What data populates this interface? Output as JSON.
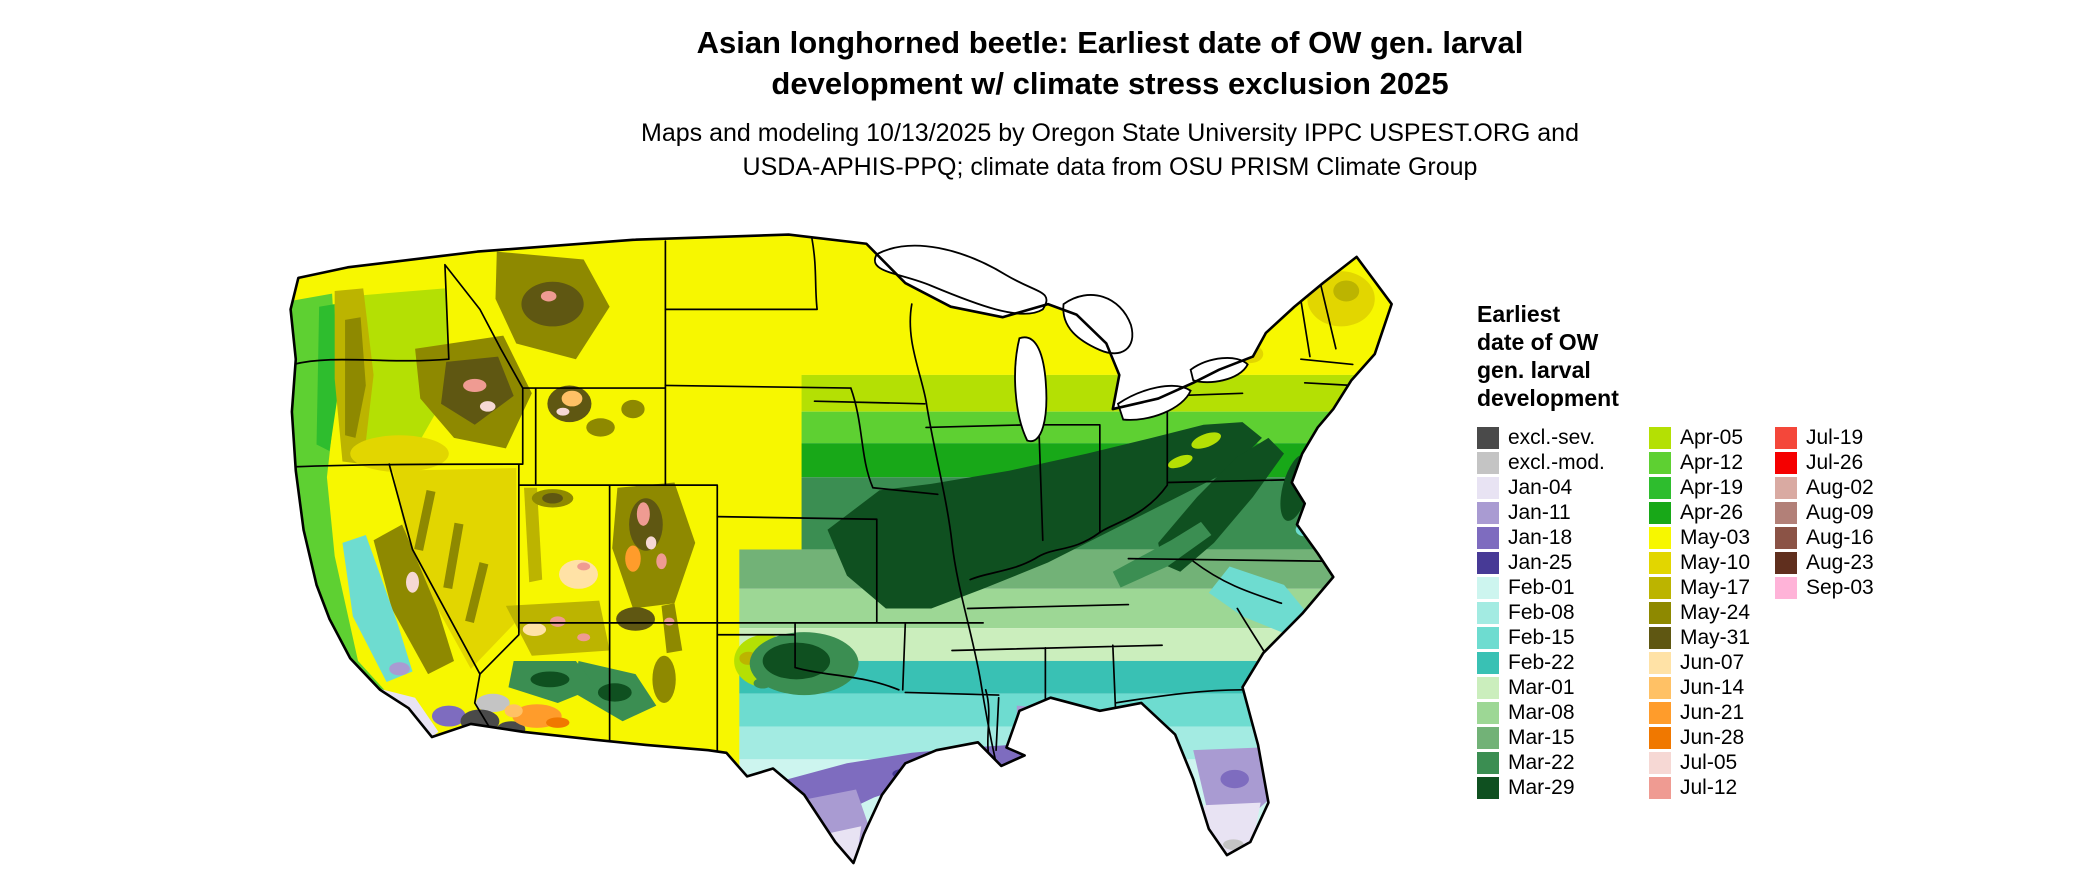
{
  "title": {
    "line1": "Asian longhorned beetle: Earliest date of OW gen. larval",
    "line2": "development w/ climate stress exclusion 2025"
  },
  "subtitle": {
    "line1": "Maps and modeling 10/13/2025 by Oregon State University IPPC USPEST.ORG and",
    "line2": "USDA-APHIS-PPQ; climate data from OSU PRISM Climate Group"
  },
  "legend": {
    "title_lines": [
      "Earliest",
      "date of OW",
      "gen. larval",
      "development"
    ],
    "columns": [
      [
        {
          "label": "excl.-sev.",
          "color": "#4a4a4a"
        },
        {
          "label": "excl.-mod.",
          "color": "#c4c4c4"
        },
        {
          "label": "Jan-04",
          "color": "#e8e3f3"
        },
        {
          "label": "Jan-11",
          "color": "#a99bd2"
        },
        {
          "label": "Jan-18",
          "color": "#7e6cbf"
        },
        {
          "label": "Jan-25",
          "color": "#473a96"
        },
        {
          "label": "Feb-01",
          "color": "#cdf5ef"
        },
        {
          "label": "Feb-08",
          "color": "#a3ebe2"
        },
        {
          "label": "Feb-15",
          "color": "#6edcd0"
        },
        {
          "label": "Feb-22",
          "color": "#39c1b4"
        },
        {
          "label": "Mar-01",
          "color": "#cbeebd"
        },
        {
          "label": "Mar-08",
          "color": "#9dd795"
        },
        {
          "label": "Mar-15",
          "color": "#72b277"
        },
        {
          "label": "Mar-22",
          "color": "#3b8e52"
        },
        {
          "label": "Mar-29",
          "color": "#0f5020"
        }
      ],
      [
        {
          "label": "Apr-05",
          "color": "#b4e004"
        },
        {
          "label": "Apr-12",
          "color": "#5ed032"
        },
        {
          "label": "Apr-19",
          "color": "#2ebd2e"
        },
        {
          "label": "Apr-26",
          "color": "#18a818"
        },
        {
          "label": "May-03",
          "color": "#f7f700"
        },
        {
          "label": "May-10",
          "color": "#e2d600"
        },
        {
          "label": "May-17",
          "color": "#bcb400"
        },
        {
          "label": "May-24",
          "color": "#8e8900"
        },
        {
          "label": "May-31",
          "color": "#5f5712"
        },
        {
          "label": "Jun-07",
          "color": "#ffe2a6"
        },
        {
          "label": "Jun-14",
          "color": "#ffc165"
        },
        {
          "label": "Jun-21",
          "color": "#ff9c2b"
        },
        {
          "label": "Jun-28",
          "color": "#f07800"
        },
        {
          "label": "Jul-05",
          "color": "#f6d8d4"
        },
        {
          "label": "Jul-12",
          "color": "#ef9b92"
        }
      ],
      [
        {
          "label": "Jul-19",
          "color": "#f4473a"
        },
        {
          "label": "Jul-26",
          "color": "#f50000"
        },
        {
          "label": "Aug-02",
          "color": "#d9aaa2"
        },
        {
          "label": "Aug-09",
          "color": "#b28078"
        },
        {
          "label": "Aug-16",
          "color": "#8b5346"
        },
        {
          "label": "Aug-23",
          "color": "#602f1e"
        },
        {
          "label": "Sep-03",
          "color": "#ffb3d8"
        }
      ]
    ]
  }
}
